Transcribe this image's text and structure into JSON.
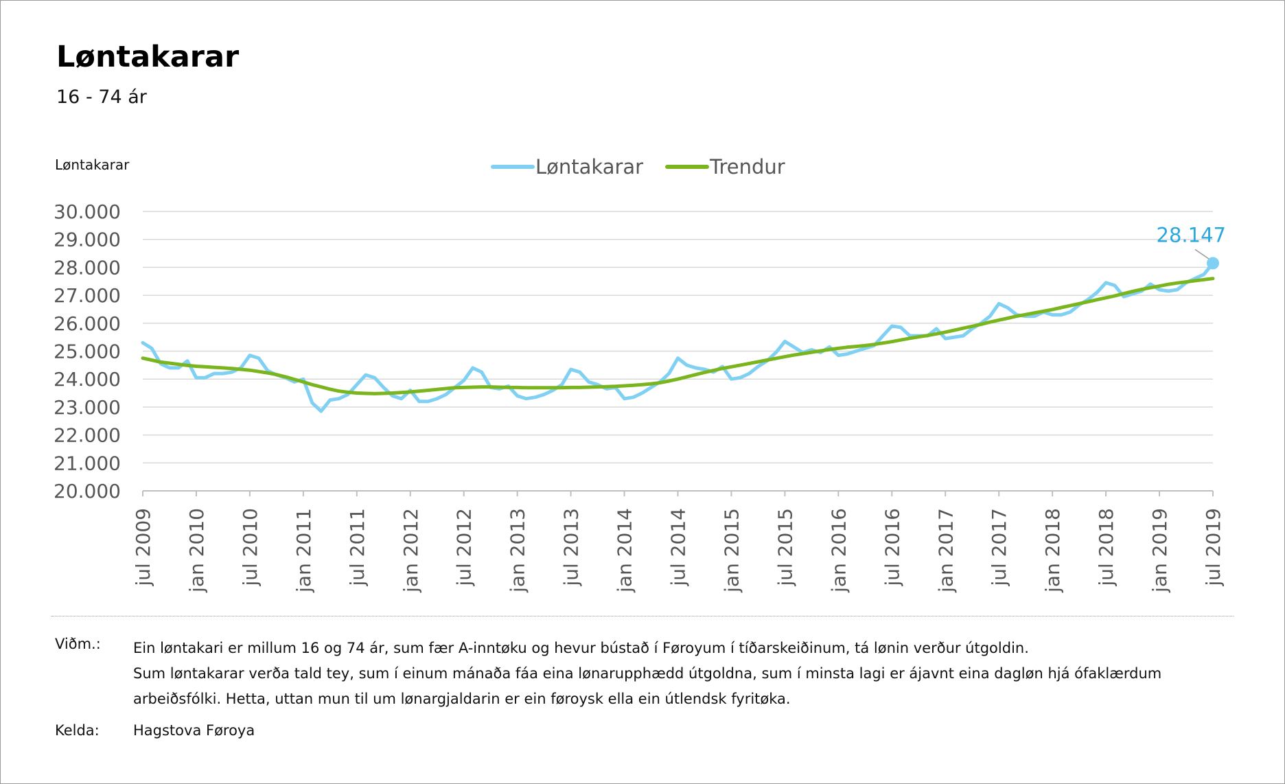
{
  "title": "Løntakarar",
  "subtitle": "16 - 74 ár",
  "notes_label": "Viðm.:",
  "notes": [
    "Ein løntakari er millum 16 og 74 ár, sum fær A-inntøku og hevur bústað í Føroyum í tíðarskeiðinum, tá lønin verður útgoldin.",
    "Sum løntakarar verða tald tey, sum í einum mánaða fáa eina lønarupphædd útgoldna, sum í minsta lagi er ájavnt eina dagløn hjá ófaklærdum",
    "arbeiðsfólki. Hetta, uttan mun til um lønargjaldarin er ein føroysk ella ein útlendsk fyritøka."
  ],
  "source_label": "Kelda:",
  "source": "Hagstova Føroya",
  "chart_data": {
    "type": "line",
    "title": "Løntakarar",
    "subtitle": "16 - 74 ár",
    "ylabel": "Løntakarar",
    "xlabel": "",
    "ylim": [
      20000,
      30000
    ],
    "y_ticks": [
      "20.000",
      "21.000",
      "22.000",
      "23.000",
      "24.000",
      "25.000",
      "26.000",
      "27.000",
      "28.000",
      "29.000",
      "30.000"
    ],
    "x_tick_labels": [
      "jul 2009",
      "jan 2010",
      "jul 2010",
      "jan 2011",
      "jul 2011",
      "jan 2012",
      "jul 2012",
      "jan 2013",
      "jul 2013",
      "jan 2014",
      "jul 2014",
      "jan 2015",
      "jul 2015",
      "jan 2016",
      "jul 2016",
      "jan 2017",
      "jul 2017",
      "jan 2018",
      "jul 2018",
      "jan 2019",
      "jul 2019"
    ],
    "x_start": "jul 2009",
    "x_end": "jul 2019",
    "grid": true,
    "legend_position": "top-center",
    "series": [
      {
        "name": "Løntakarar",
        "color": "#7fd0f2",
        "values": [
          25300,
          25100,
          24550,
          24400,
          24400,
          24650,
          24050,
          24050,
          24200,
          24200,
          24250,
          24400,
          24850,
          24750,
          24300,
          24150,
          24050,
          23900,
          24000,
          23150,
          22850,
          23250,
          23300,
          23450,
          23800,
          24150,
          24050,
          23700,
          23400,
          23300,
          23600,
          23200,
          23200,
          23300,
          23450,
          23700,
          23950,
          24400,
          24250,
          23700,
          23650,
          23750,
          23400,
          23300,
          23350,
          23450,
          23600,
          23800,
          24350,
          24250,
          23900,
          23800,
          23650,
          23700,
          23300,
          23350,
          23500,
          23700,
          23900,
          24200,
          24750,
          24500,
          24400,
          24350,
          24250,
          24450,
          24000,
          24050,
          24200,
          24450,
          24650,
          24950,
          25350,
          25150,
          24950,
          25050,
          24950,
          25150,
          24850,
          24900,
          25000,
          25100,
          25200,
          25550,
          25900,
          25850,
          25550,
          25550,
          25550,
          25800,
          25450,
          25500,
          25550,
          25800,
          26000,
          26250,
          26700,
          26550,
          26300,
          26250,
          26250,
          26400,
          26300,
          26300,
          26400,
          26650,
          26850,
          27100,
          27450,
          27350,
          26950,
          27050,
          27150,
          27400,
          27200,
          27150,
          27200,
          27450,
          27600,
          27750,
          28147
        ]
      },
      {
        "name": "Trendur",
        "color": "#7ab51d",
        "values": [
          24750,
          24680,
          24610,
          24570,
          24530,
          24490,
          24460,
          24440,
          24420,
          24400,
          24380,
          24350,
          24320,
          24270,
          24220,
          24160,
          24080,
          23990,
          23900,
          23800,
          23720,
          23640,
          23570,
          23530,
          23500,
          23490,
          23480,
          23490,
          23500,
          23520,
          23540,
          23570,
          23600,
          23630,
          23660,
          23690,
          23700,
          23710,
          23720,
          23720,
          23710,
          23700,
          23700,
          23690,
          23690,
          23690,
          23690,
          23690,
          23700,
          23700,
          23710,
          23720,
          23730,
          23740,
          23760,
          23780,
          23800,
          23830,
          23870,
          23930,
          24000,
          24080,
          24160,
          24240,
          24310,
          24380,
          24440,
          24500,
          24560,
          24620,
          24680,
          24740,
          24800,
          24860,
          24910,
          24960,
          25010,
          25060,
          25100,
          25140,
          25170,
          25200,
          25240,
          25290,
          25340,
          25400,
          25460,
          25510,
          25560,
          25620,
          25680,
          25750,
          25820,
          25890,
          25960,
          26040,
          26110,
          26180,
          26250,
          26310,
          26370,
          26430,
          26490,
          26560,
          26630,
          26700,
          26770,
          26840,
          26910,
          26980,
          27060,
          27140,
          27210,
          27270,
          27330,
          27390,
          27440,
          27480,
          27520,
          27560,
          27600
        ]
      }
    ],
    "annotation": {
      "series": "Løntakarar",
      "point": "jul 2019",
      "label": "28.147",
      "value": 28147
    }
  }
}
